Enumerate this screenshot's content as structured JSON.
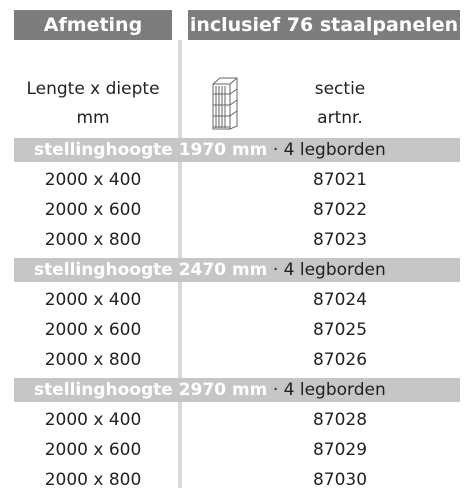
{
  "header": {
    "columns": [
      "Afmeting",
      "inclusief 76 staalpanelen"
    ]
  },
  "subheader": {
    "left": [
      "Lengte x diepte",
      "mm"
    ],
    "right": [
      "sectie",
      "artnr."
    ]
  },
  "sections": [
    {
      "height": "stellinghoogte 1970 mm",
      "shelves": "· 4 legborden",
      "rows": [
        [
          "2000 x 400",
          "87021"
        ],
        [
          "2000 x 600",
          "87022"
        ],
        [
          "2000 x 800",
          "87023"
        ]
      ]
    },
    {
      "height": "stellinghoogte 2470 mm",
      "shelves": "· 4 legborden",
      "rows": [
        [
          "2000 x 400",
          "87024"
        ],
        [
          "2000 x 600",
          "87025"
        ],
        [
          "2000 x 800",
          "87026"
        ]
      ]
    },
    {
      "height": "stellinghoogte 2970 mm",
      "shelves": "· 4 legborden",
      "rows": [
        [
          "2000 x 400",
          "87028"
        ],
        [
          "2000 x 600",
          "87029"
        ],
        [
          "2000 x 800",
          "87030"
        ]
      ]
    }
  ]
}
